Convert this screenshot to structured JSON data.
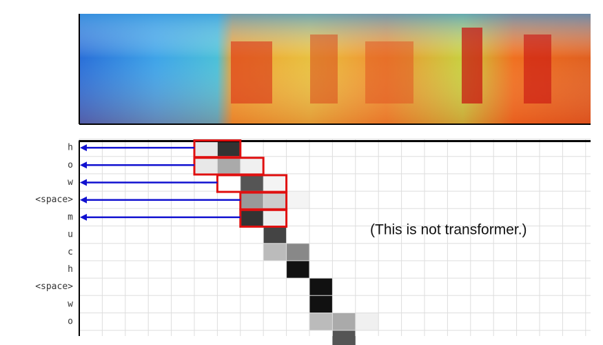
{
  "figure": {
    "row_labels": [
      "h",
      "o",
      "w",
      "<space>",
      "m",
      "u",
      "c",
      "h",
      "<space>",
      "w",
      "o"
    ],
    "note": "(This is not transformer.)"
  }
}
